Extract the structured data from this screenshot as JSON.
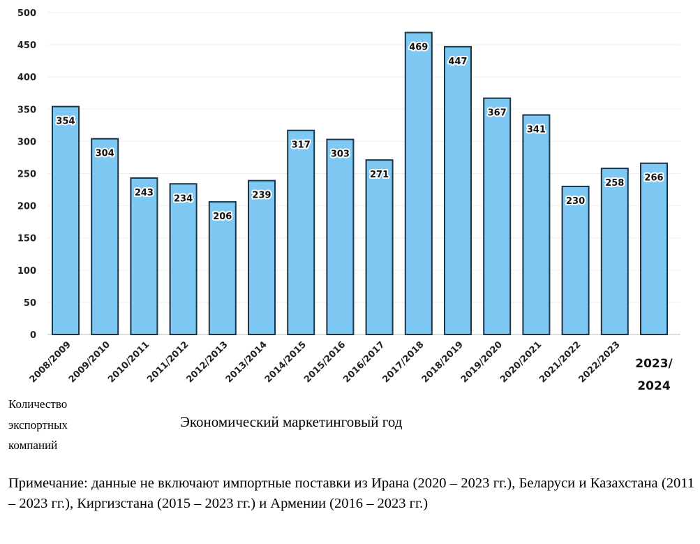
{
  "chart_data": {
    "type": "bar",
    "categories": [
      "2008/2009",
      "2009/2010",
      "2010/2011",
      "2011/2012",
      "2012/2013",
      "2013/2014",
      "2014/2015",
      "2015/2016",
      "2016/2017",
      "2017/2018",
      "2018/2019",
      "2019/2020",
      "2020/2021",
      "2021/2022",
      "2022/2023",
      "2023/2024"
    ],
    "last_category_lines": [
      "2023/",
      "2024"
    ],
    "values": [
      354,
      304,
      243,
      234,
      206,
      239,
      317,
      303,
      271,
      469,
      447,
      367,
      341,
      230,
      258,
      266
    ],
    "ylim": [
      0,
      500
    ],
    "yticks": [
      0,
      50,
      100,
      150,
      200,
      250,
      300,
      350,
      400,
      450,
      500
    ],
    "ylabel": "Количество экспортных компаний",
    "ylabel_lines": [
      "Количество",
      "экспортных",
      "компаний"
    ],
    "xlabel": "Экономический маркетинговый год",
    "grid": true,
    "data_labels": true,
    "bar_color": "#7ec8f4",
    "bar_edge_color": "#1c3444"
  },
  "note": "Примечание: данные не включают импортные поставки из Ирана (2020 – 2023 гг.), Беларуси и Казахстана (2011 – 2023 гг.), Киргизстана (2015 – 2023 гг.) и Армении (2016 – 2023 гг.)"
}
